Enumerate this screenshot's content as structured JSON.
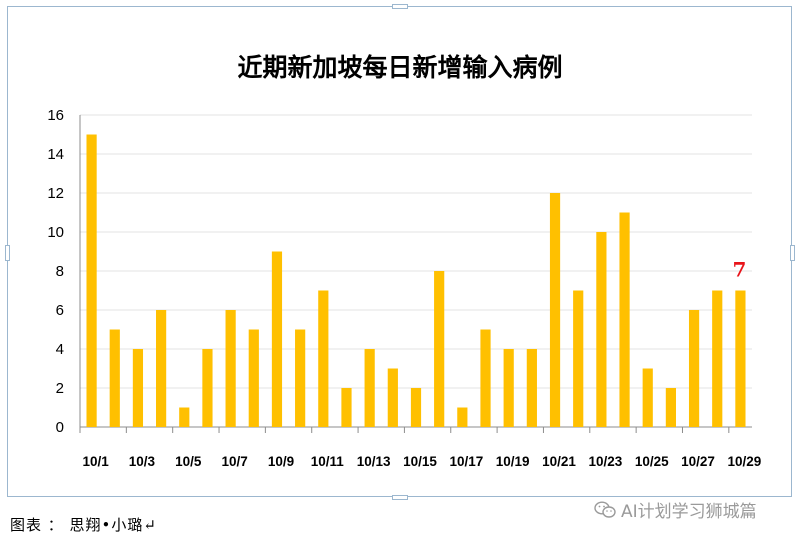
{
  "chart_data": {
    "type": "bar",
    "title": "近期新加坡每日新增输入病例",
    "xlabel": "",
    "ylabel": "",
    "ylim": [
      0,
      16
    ],
    "yticks": [
      0,
      2,
      4,
      6,
      8,
      10,
      12,
      14,
      16
    ],
    "grid": true,
    "bar_color": "#ffc000",
    "categories": [
      "10/1",
      "10/2",
      "10/3",
      "10/4",
      "10/5",
      "10/6",
      "10/7",
      "10/8",
      "10/9",
      "10/10",
      "10/11",
      "10/12",
      "10/13",
      "10/14",
      "10/15",
      "10/16",
      "10/17",
      "10/18",
      "10/19",
      "10/20",
      "10/21",
      "10/22",
      "10/23",
      "10/24",
      "10/25",
      "10/26",
      "10/27",
      "10/28",
      "10/29"
    ],
    "tick_labels": [
      "10/1",
      "10/3",
      "10/5",
      "10/7",
      "10/9",
      "10/11",
      "10/13",
      "10/15",
      "10/17",
      "10/19",
      "10/21",
      "10/23",
      "10/25",
      "10/27",
      "10/29"
    ],
    "values": [
      15,
      5,
      4,
      6,
      1,
      4,
      6,
      5,
      9,
      5,
      7,
      2,
      4,
      3,
      2,
      8,
      1,
      5,
      4,
      4,
      12,
      7,
      10,
      11,
      3,
      2,
      6,
      7,
      7
    ],
    "annotation": {
      "category": "10/29",
      "text": "7",
      "color": "#e8141a"
    }
  },
  "credit": "图表 ： 思翔•小璐↵",
  "watermark": "AI计划学习狮城篇"
}
